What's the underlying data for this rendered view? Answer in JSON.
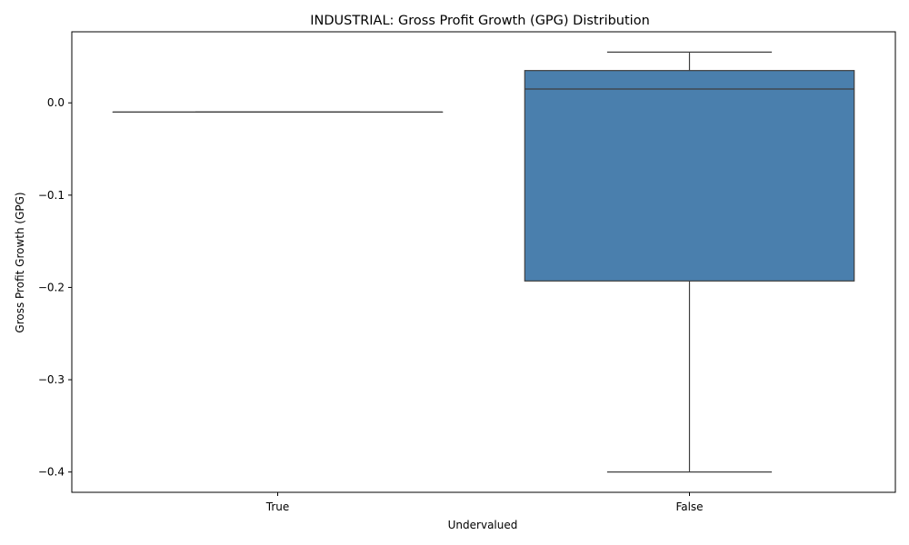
{
  "chart_data": {
    "type": "box",
    "title": "INDUSTRIAL: Gross Profit Growth (GPG) Distribution",
    "xlabel": "Undervalued",
    "ylabel": "Gross Profit Growth (GPG)",
    "categories": [
      "True",
      "False"
    ],
    "boxes": [
      {
        "category": "True",
        "whisker_low": -0.01,
        "q1": -0.01,
        "median": -0.01,
        "q3": -0.01,
        "whisker_high": -0.01
      },
      {
        "category": "False",
        "whisker_low": -0.4,
        "q1": -0.193,
        "median": 0.015,
        "q3": 0.035,
        "whisker_high": 0.055
      }
    ],
    "yticks": [
      0.0,
      -0.1,
      -0.2,
      -0.3,
      -0.4
    ],
    "ytick_labels": [
      "0.0",
      "−0.1",
      "−0.2",
      "−0.3",
      "−0.4"
    ],
    "ylim": [
      -0.422,
      0.077
    ],
    "grid": false,
    "colors": {
      "box_fill": "#4a7fad",
      "line": "#3f3f3f",
      "axis": "#000000"
    }
  }
}
